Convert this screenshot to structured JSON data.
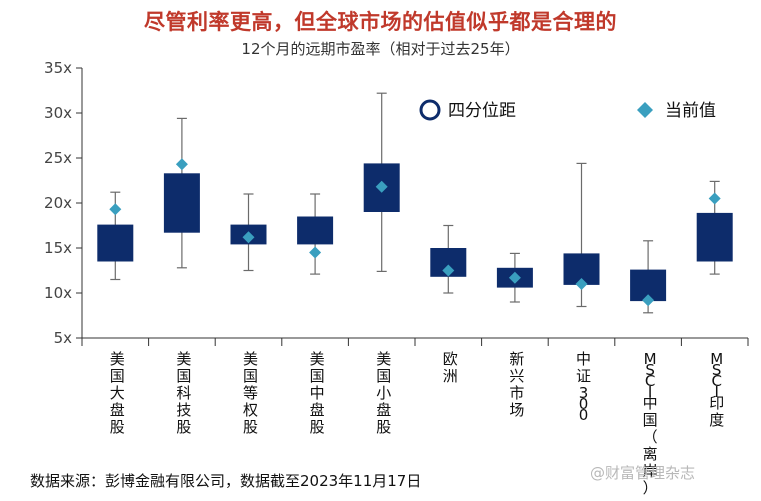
{
  "title": "尽管利率更高，但全球市场的估值似乎都是合理的",
  "subtitle": "12个月的远期市盈率（相对于过去25年）",
  "source": "数据来源：彭博金融有限公司，数据截至2023年11月17日",
  "watermark": "@财富管理杂志",
  "colors": {
    "box": "#0d2c6b",
    "whisker": "#6b6b6b",
    "marker": "#3a9fbf",
    "title": "#c0392b",
    "axis": "#333333"
  },
  "chart_data": {
    "type": "box",
    "title": "尽管利率更高，但全球市场的估值似乎都是合理的",
    "subtitle": "12个月的远期市盈率（相对于过去25年）",
    "ylim": [
      5,
      35
    ],
    "yticks": [
      5,
      10,
      15,
      20,
      25,
      30,
      35
    ],
    "ytick_labels": [
      "5x",
      "10x",
      "15x",
      "20x",
      "25x",
      "30x",
      "35x"
    ],
    "grid": false,
    "legend": {
      "position": "top-right",
      "range_label": "四分位距",
      "current_label": "当前值"
    },
    "categories": [
      "美国大盘股",
      "美国科技股",
      "美国等权股",
      "美国中盘股",
      "美国小盘股",
      "欧洲",
      "新兴市场",
      "中证300",
      "MSCI中国（离岸）",
      "MSCI印度"
    ],
    "series": [
      {
        "stats": [
          {
            "min": 11.5,
            "q1": 13.5,
            "q3": 17.6,
            "max": 21.2,
            "current": 19.3
          },
          {
            "min": 12.8,
            "q1": 16.7,
            "q3": 23.3,
            "max": 29.4,
            "current": 24.3
          },
          {
            "min": 12.5,
            "q1": 15.4,
            "q3": 17.6,
            "max": 21.0,
            "current": 16.2
          },
          {
            "min": 12.1,
            "q1": 15.4,
            "q3": 18.5,
            "max": 21.0,
            "current": 14.5
          },
          {
            "min": 12.4,
            "q1": 19.0,
            "q3": 24.4,
            "max": 32.2,
            "current": 21.8
          },
          {
            "min": 10.0,
            "q1": 11.8,
            "q3": 15.0,
            "max": 17.5,
            "current": 12.5
          },
          {
            "min": 9.0,
            "q1": 10.6,
            "q3": 12.8,
            "max": 14.4,
            "current": 11.7
          },
          {
            "min": 8.5,
            "q1": 10.9,
            "q3": 14.4,
            "max": 24.4,
            "current": 11.0
          },
          {
            "min": 7.8,
            "q1": 9.1,
            "q3": 12.6,
            "max": 15.8,
            "current": 9.2
          },
          {
            "min": 12.1,
            "q1": 13.5,
            "q3": 18.9,
            "max": 22.4,
            "current": 20.5
          }
        ]
      }
    ]
  }
}
